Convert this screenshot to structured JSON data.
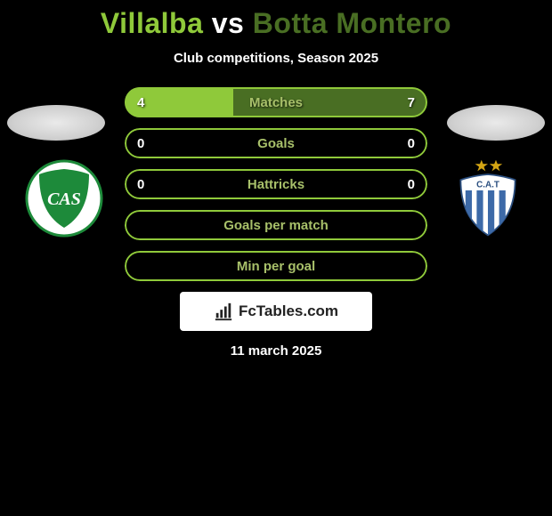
{
  "title": {
    "left": "Villalba",
    "vs": "vs",
    "right": "Botta Montero"
  },
  "subtitle": "Club competitions, Season 2025",
  "colors": {
    "accent_left": "#8fc93a",
    "accent_left_dark": "#4f7a1f",
    "accent_right": "#496e23",
    "row_label": "#a8c06a",
    "white": "#ffffff"
  },
  "rows": [
    {
      "label": "Matches",
      "left_val": "4",
      "right_val": "7",
      "left_pct": 36,
      "right_pct": 64,
      "labeled": true
    },
    {
      "label": "Goals",
      "left_val": "0",
      "right_val": "0",
      "left_pct": 0,
      "right_pct": 0,
      "labeled": true
    },
    {
      "label": "Hattricks",
      "left_val": "0",
      "right_val": "0",
      "left_pct": 0,
      "right_pct": 0,
      "labeled": true
    },
    {
      "label": "Goals per match",
      "left_val": "",
      "right_val": "",
      "left_pct": 0,
      "right_pct": 0,
      "labeled": false
    },
    {
      "label": "Min per goal",
      "left_val": "",
      "right_val": "",
      "left_pct": 0,
      "right_pct": 0,
      "labeled": false
    }
  ],
  "site": "FcTables.com",
  "date": "11 march 2025",
  "club_left": {
    "bg": "#ffffff",
    "shield": "#1d8a3a",
    "ring": "#1d8a3a",
    "text": "CAS"
  },
  "club_right": {
    "bg": "#ffffff",
    "stripes": "#3d6aa8",
    "outline": "#2b4f80",
    "star": "#d4a514",
    "text": "C.A.T"
  }
}
